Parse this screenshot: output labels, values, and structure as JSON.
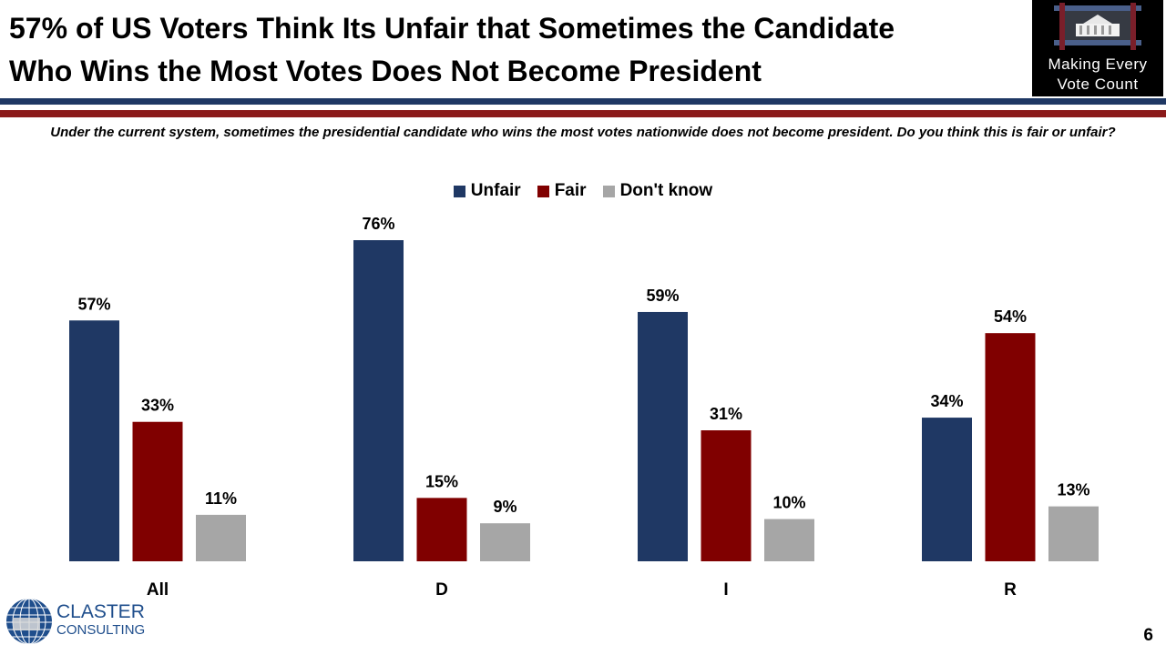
{
  "header": {
    "title_line1": "57% of US Voters Think Its Unfair that Sometimes the Candidate",
    "title_line2": "Who Wins the Most Votes Does Not Become President"
  },
  "logo": {
    "line1": "Making Every",
    "line2": "Vote Count"
  },
  "question": "Under the current system, sometimes the presidential candidate who wins the most votes nationwide does not become president. Do you think this is fair or unfair?",
  "footer": {
    "company_line1": "CLASTER",
    "company_line2": "CONSULTING",
    "page_number": "6"
  },
  "colors": {
    "navy": "#1f3864",
    "red": "#800000",
    "gray": "#a6a6a6",
    "stripe_navy": "#1f3864",
    "stripe_red": "#8b1a1a"
  },
  "chart_data": {
    "type": "bar",
    "title": "",
    "xlabel": "",
    "ylabel": "",
    "ylim": [
      0,
      80
    ],
    "categories": [
      "All",
      "D",
      "I",
      "R"
    ],
    "series": [
      {
        "name": "Unfair",
        "color": "#1f3864",
        "values": [
          57,
          76,
          59,
          34
        ],
        "labels": [
          "57%",
          "76%",
          "59%",
          "34%"
        ]
      },
      {
        "name": "Fair",
        "color": "#800000",
        "values": [
          33,
          15,
          31,
          54
        ],
        "labels": [
          "33%",
          "15%",
          "31%",
          "54%"
        ]
      },
      {
        "name": "Don't know",
        "color": "#a6a6a6",
        "values": [
          11,
          9,
          10,
          13
        ],
        "labels": [
          "11%",
          "9%",
          "10%",
          "13%"
        ]
      }
    ],
    "legend_position": "top-center"
  }
}
